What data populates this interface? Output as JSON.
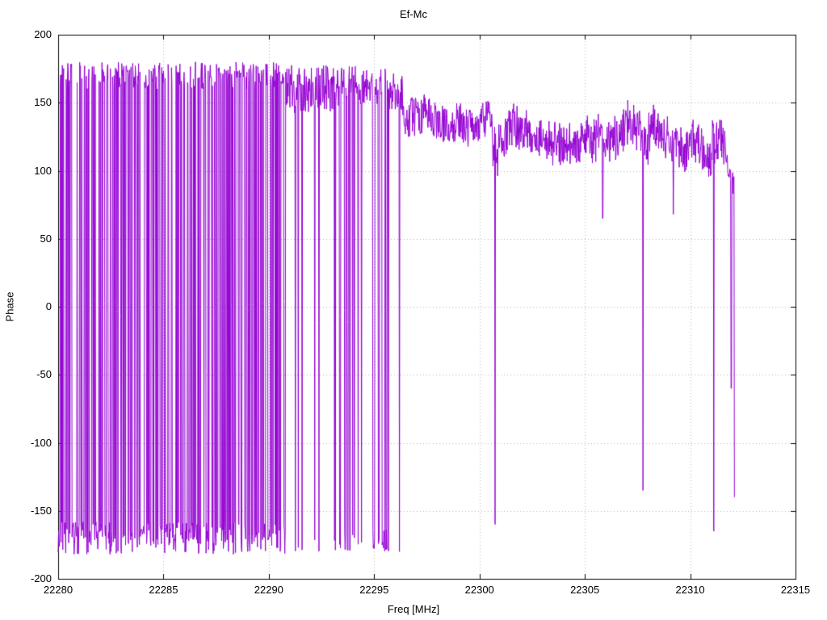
{
  "chart_data": {
    "type": "line",
    "title": "Ef-Mc",
    "xlabel": "Freq [MHz]",
    "ylabel": "Phase",
    "xlim": [
      22280,
      22315
    ],
    "ylim": [
      -200,
      200
    ],
    "xticks": [
      22280,
      22285,
      22290,
      22295,
      22300,
      22305,
      22310,
      22315
    ],
    "yticks": [
      -200,
      -150,
      -100,
      -50,
      0,
      50,
      100,
      150,
      200
    ],
    "grid": true,
    "grid_color": "#b4b4b4",
    "line_color": "#9400d3",
    "series_name": "Ef-Mc phase",
    "legend": "none",
    "sampling": {
      "x_start": 22280.0,
      "x_end": 22312.1,
      "step": 0.02,
      "seed": 7
    },
    "segments": [
      {
        "x0": 22280.0,
        "x1": 22290.8,
        "mode": "wrap",
        "sticky": true,
        "wrap_prob": 0.42,
        "top_mean": 170,
        "top_jitter": 10,
        "bottom_mean": -170,
        "bottom_jitter": 12
      },
      {
        "x0": 22290.8,
        "x1": 22293.3,
        "mode": "wrap",
        "sticky": false,
        "wrap_prob": 0.035,
        "top_mean": 160,
        "top_jitter": 18,
        "bottom_mean": -176,
        "bottom_jitter": 5
      },
      {
        "x0": 22293.3,
        "x1": 22294.1,
        "mode": "wrap",
        "sticky": true,
        "wrap_prob": 0.3,
        "top_mean": 165,
        "top_jitter": 12,
        "bottom_mean": -172,
        "bottom_jitter": 8
      },
      {
        "x0": 22294.1,
        "x1": 22294.9,
        "mode": "wrap",
        "sticky": false,
        "wrap_prob": 0.05,
        "top_mean": 160,
        "top_jitter": 15,
        "bottom_mean": -175,
        "bottom_jitter": 6
      },
      {
        "x0": 22294.9,
        "x1": 22295.7,
        "mode": "wrap",
        "sticky": true,
        "wrap_prob": 0.3,
        "top_mean": 162,
        "top_jitter": 13,
        "bottom_mean": -172,
        "bottom_jitter": 8
      },
      {
        "x0": 22295.7,
        "x1": 22296.35,
        "mode": "wrap",
        "sticky": false,
        "wrap_prob": 0.03,
        "top_mean": 158,
        "top_jitter": 14,
        "bottom_mean": -178,
        "bottom_jitter": 4
      },
      {
        "x0": 22296.35,
        "x1": 22300.6,
        "mode": "noise",
        "mean0": 148,
        "mean1": 140,
        "jitter": 16
      },
      {
        "x0": 22300.6,
        "x1": 22301.1,
        "mode": "noise",
        "mean0": 125,
        "mean1": 125,
        "jitter": 22
      },
      {
        "x0": 22301.1,
        "x1": 22304.6,
        "mode": "noise",
        "mean0": 134,
        "mean1": 128,
        "jitter": 17
      },
      {
        "x0": 22304.6,
        "x1": 22307.6,
        "mode": "noise",
        "mean0": 135,
        "mean1": 130,
        "jitter": 20
      },
      {
        "x0": 22307.6,
        "x1": 22308.0,
        "mode": "noise",
        "mean0": 115,
        "mean1": 115,
        "jitter": 18
      },
      {
        "x0": 22308.0,
        "x1": 22311.0,
        "mode": "noise",
        "mean0": 126,
        "mean1": 118,
        "jitter": 17
      },
      {
        "x0": 22311.0,
        "x1": 22311.7,
        "mode": "noise",
        "mean0": 130,
        "mean1": 125,
        "jitter": 22
      },
      {
        "x0": 22311.7,
        "x1": 22312.2,
        "mode": "noise",
        "mean0": 112,
        "mean1": 96,
        "jitter": 12
      }
    ],
    "spikes": [
      {
        "x": 22296.2,
        "y": -180
      },
      {
        "x": 22300.74,
        "y": -160
      },
      {
        "x": 22305.85,
        "y": 65
      },
      {
        "x": 22307.76,
        "y": -135
      },
      {
        "x": 22309.2,
        "y": 68
      },
      {
        "x": 22311.12,
        "y": -165
      },
      {
        "x": 22311.95,
        "y": -60
      },
      {
        "x": 22312.1,
        "y": -140
      }
    ]
  }
}
